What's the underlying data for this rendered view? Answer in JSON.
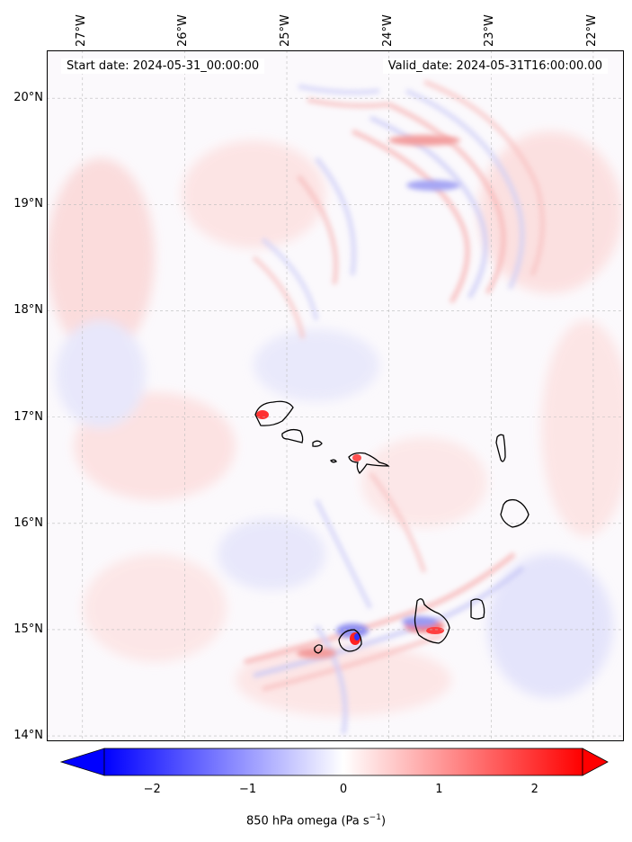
{
  "map": {
    "start_label": "Start date: 2024-05-31_00:00:00",
    "valid_label": "Valid_date: 2024-05-31T16:00:00.00",
    "lon_ticks": [
      "27°W",
      "26°W",
      "25°W",
      "24°W",
      "23°W",
      "22°W"
    ],
    "lat_ticks": [
      "20°N",
      "19°N",
      "18°N",
      "17°N",
      "16°N",
      "15°N",
      "14°N"
    ],
    "lon_range": [
      -27.35,
      -21.7
    ],
    "lat_range": [
      13.95,
      20.45
    ],
    "gridlines": true,
    "islands": [
      "Santo Antão",
      "São Vicente",
      "Santa Luzia",
      "São Nicolau",
      "Sal",
      "Boa Vista",
      "Maio",
      "Santiago",
      "Fogo",
      "Brava"
    ]
  },
  "colorbar": {
    "label": "850 hPa omega (Pa s",
    "label_sup": "−1",
    "label_close": ")",
    "ticks": [
      "−2",
      "−1",
      "0",
      "1",
      "2"
    ],
    "tick_values": [
      -2,
      -1,
      0,
      1,
      2
    ],
    "range": [
      -2.5,
      2.5
    ],
    "extend": "both",
    "colors": {
      "low": "#0000ff",
      "mid": "#ffffff",
      "high": "#ff0000"
    }
  }
}
